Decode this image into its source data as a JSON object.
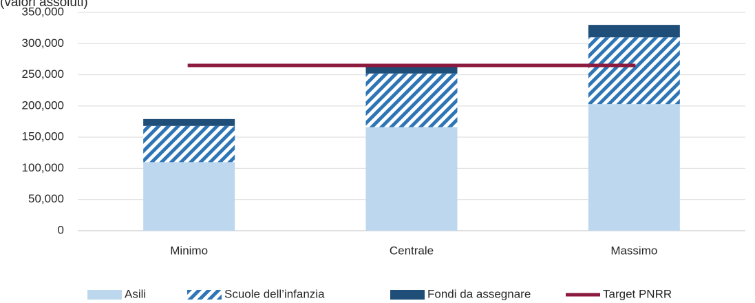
{
  "chart_data": {
    "type": "bar",
    "stacked": true,
    "title": "(valori assoluti)",
    "categories": [
      "Minimo",
      "Centrale",
      "Massimo"
    ],
    "series": [
      {
        "name": "Asili",
        "color": "#bdd7ee",
        "values": [
          110000,
          166000,
          203000
        ]
      },
      {
        "name": "Scuole dell’infanzia",
        "color": "#2e75b6",
        "pattern": "hatch",
        "values": [
          58000,
          86000,
          107000
        ]
      },
      {
        "name": "Fondi da assegnare",
        "color": "#1f4e79",
        "values": [
          11000,
          11000,
          20000
        ]
      },
      {
        "name": "Target PNRR",
        "color": "#8b1a3e",
        "type": "line",
        "values": [
          265000,
          265000,
          265000
        ]
      }
    ],
    "ylim": [
      0,
      350000
    ],
    "yticks": [
      0,
      {
        "value": 50000,
        "label": "50,000"
      },
      {
        "value": 100000,
        "label": "100,000"
      },
      {
        "value": 150000,
        "label": "150,000"
      },
      {
        "value": 200000,
        "label": "200,000"
      },
      {
        "value": 250000,
        "label": "250,000"
      },
      {
        "value": 300000,
        "label": "300,000"
      },
      {
        "value": 350000,
        "label": "350,000"
      }
    ],
    "grid": true,
    "legend": "bottom"
  }
}
